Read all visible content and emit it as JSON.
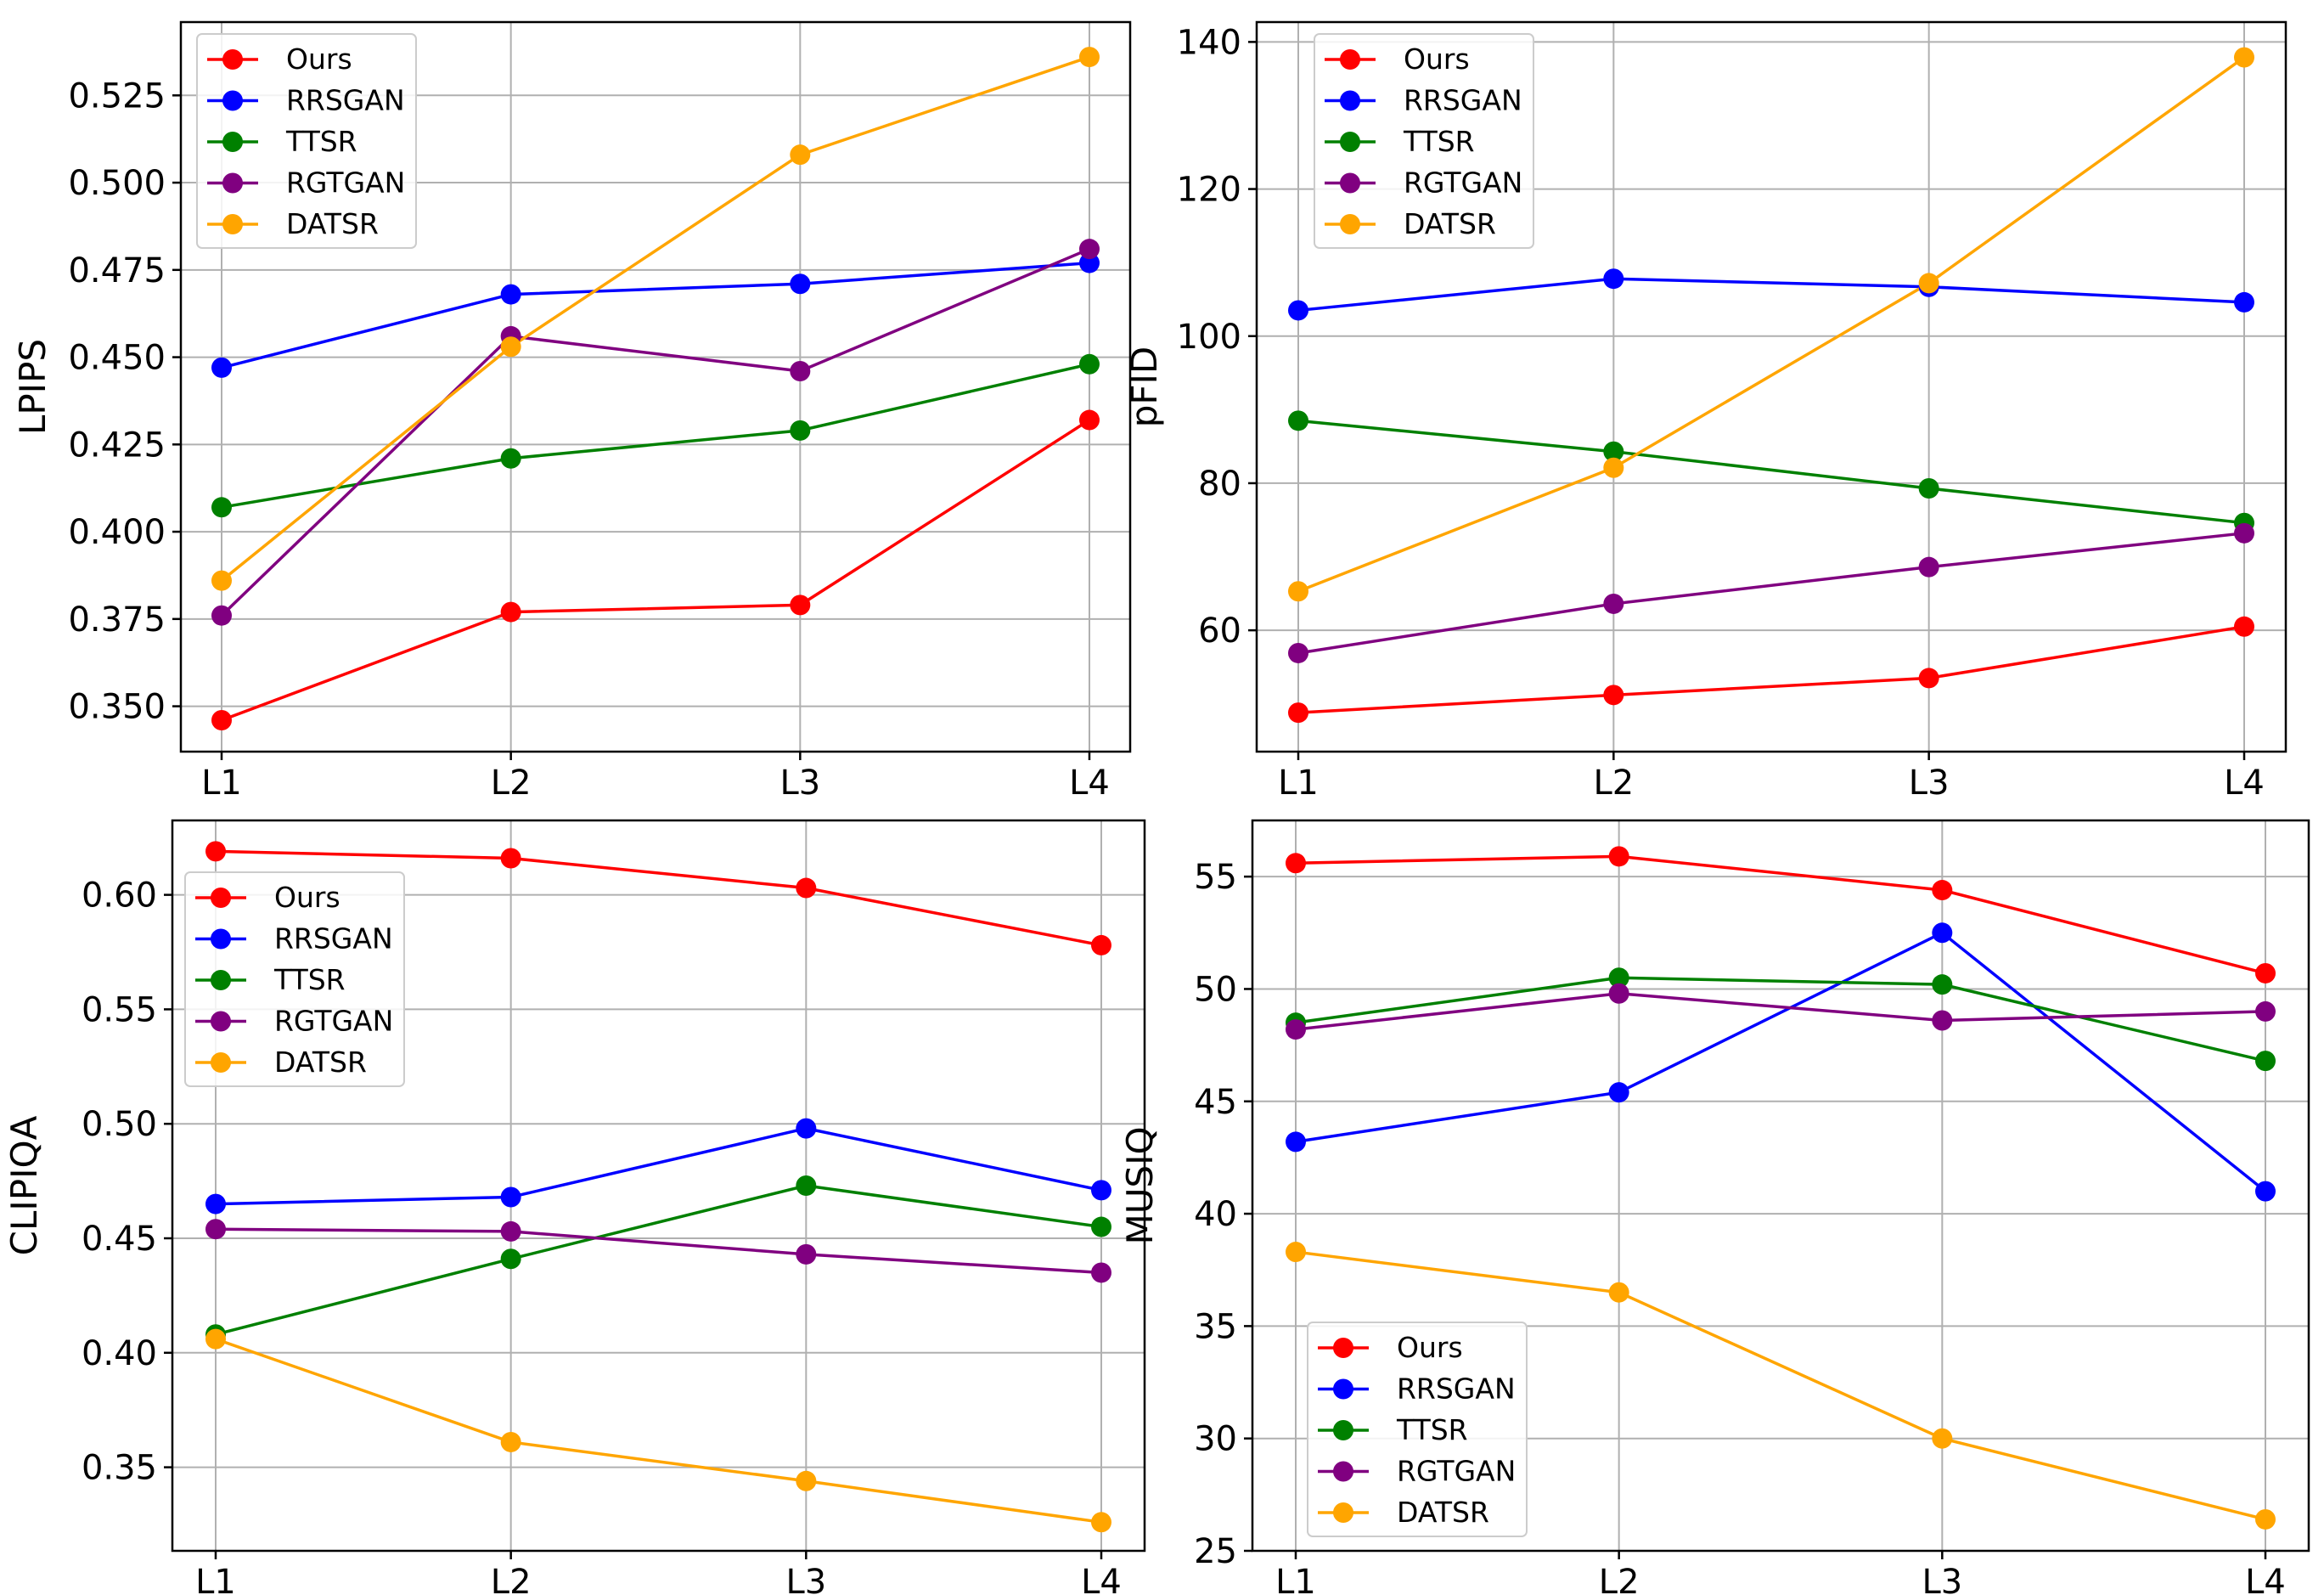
{
  "colors": {
    "Ours": "#ff0000",
    "RRSGAN": "#0000ff",
    "TTSR": "#008000",
    "RGTGAN": "#800080",
    "DATSR": "#ffa500",
    "grid": "#b0b0b0",
    "axes": "#000000"
  },
  "chart_data": [
    {
      "id": "lpips",
      "type": "line",
      "title": "",
      "xlabel": "",
      "ylabel": "LPIPS",
      "categories": [
        "L1",
        "L2",
        "L3",
        "L4"
      ],
      "ylim": [
        0.337,
        0.546
      ],
      "yticks": [
        0.35,
        0.375,
        0.4,
        0.425,
        0.45,
        0.475,
        0.5,
        0.525
      ],
      "ytick_labels": [
        "0.350",
        "0.375",
        "0.400",
        "0.425",
        "0.450",
        "0.475",
        "0.500",
        "0.525"
      ],
      "grid": true,
      "legend": "upper-left",
      "series": [
        {
          "name": "Ours",
          "values": [
            0.346,
            0.377,
            0.379,
            0.432
          ]
        },
        {
          "name": "RRSGAN",
          "values": [
            0.447,
            0.468,
            0.471,
            0.477
          ]
        },
        {
          "name": "TTSR",
          "values": [
            0.407,
            0.421,
            0.429,
            0.448
          ]
        },
        {
          "name": "RGTGAN",
          "values": [
            0.376,
            0.456,
            0.446,
            0.481
          ]
        },
        {
          "name": "DATSR",
          "values": [
            0.386,
            0.453,
            0.508,
            0.536
          ]
        }
      ]
    },
    {
      "id": "pfid",
      "type": "line",
      "title": "",
      "xlabel": "",
      "ylabel": "pFID",
      "categories": [
        "L1",
        "L2",
        "L3",
        "L4"
      ],
      "ylim": [
        43.5,
        142.7
      ],
      "yticks": [
        60,
        80,
        100,
        120,
        140
      ],
      "ytick_labels": [
        "60",
        "80",
        "100",
        "120",
        "140"
      ],
      "grid": true,
      "legend": "upper-left",
      "series": [
        {
          "name": "Ours",
          "values": [
            48.8,
            51.2,
            53.5,
            60.5
          ]
        },
        {
          "name": "RRSGAN",
          "values": [
            103.5,
            107.8,
            106.7,
            104.6
          ]
        },
        {
          "name": "TTSR",
          "values": [
            88.5,
            84.3,
            79.3,
            74.6
          ]
        },
        {
          "name": "RGTGAN",
          "values": [
            56.9,
            63.6,
            68.6,
            73.2
          ]
        },
        {
          "name": "DATSR",
          "values": [
            65.3,
            82.1,
            107.2,
            137.9
          ]
        }
      ]
    },
    {
      "id": "clipiqa",
      "type": "line",
      "title": "",
      "xlabel": "",
      "ylabel": "CLIPIQA",
      "categories": [
        "L1",
        "L2",
        "L3",
        "L4"
      ],
      "ylim": [
        0.3135,
        0.6325
      ],
      "yticks": [
        0.35,
        0.4,
        0.45,
        0.5,
        0.55,
        0.6
      ],
      "ytick_labels": [
        "0.35",
        "0.40",
        "0.45",
        "0.50",
        "0.55",
        "0.60"
      ],
      "grid": true,
      "legend": "upper-left",
      "series": [
        {
          "name": "Ours",
          "values": [
            0.619,
            0.616,
            0.603,
            0.578
          ]
        },
        {
          "name": "RRSGAN",
          "values": [
            0.465,
            0.468,
            0.498,
            0.471
          ]
        },
        {
          "name": "TTSR",
          "values": [
            0.408,
            0.441,
            0.473,
            0.455
          ]
        },
        {
          "name": "RGTGAN",
          "values": [
            0.454,
            0.453,
            0.443,
            0.435
          ]
        },
        {
          "name": "DATSR",
          "values": [
            0.406,
            0.361,
            0.344,
            0.326
          ]
        }
      ]
    },
    {
      "id": "musiq",
      "type": "line",
      "title": "",
      "xlabel": "",
      "ylabel": "MUSIQ",
      "categories": [
        "L1",
        "L2",
        "L3",
        "L4"
      ],
      "ylim": [
        25.0,
        57.5
      ],
      "yticks": [
        25,
        30,
        35,
        40,
        45,
        50,
        55
      ],
      "ytick_labels": [
        "25",
        "30",
        "35",
        "40",
        "45",
        "50",
        "55"
      ],
      "grid": true,
      "legend": "lower-left",
      "series": [
        {
          "name": "Ours",
          "values": [
            55.6,
            55.9,
            54.4,
            50.7
          ]
        },
        {
          "name": "RRSGAN",
          "values": [
            43.2,
            45.4,
            52.5,
            41.0
          ]
        },
        {
          "name": "TTSR",
          "values": [
            48.5,
            50.5,
            50.2,
            46.8
          ]
        },
        {
          "name": "RGTGAN",
          "values": [
            48.2,
            49.8,
            48.6,
            49.0
          ]
        },
        {
          "name": "DATSR",
          "values": [
            38.3,
            36.5,
            30.0,
            26.4
          ]
        }
      ]
    }
  ]
}
